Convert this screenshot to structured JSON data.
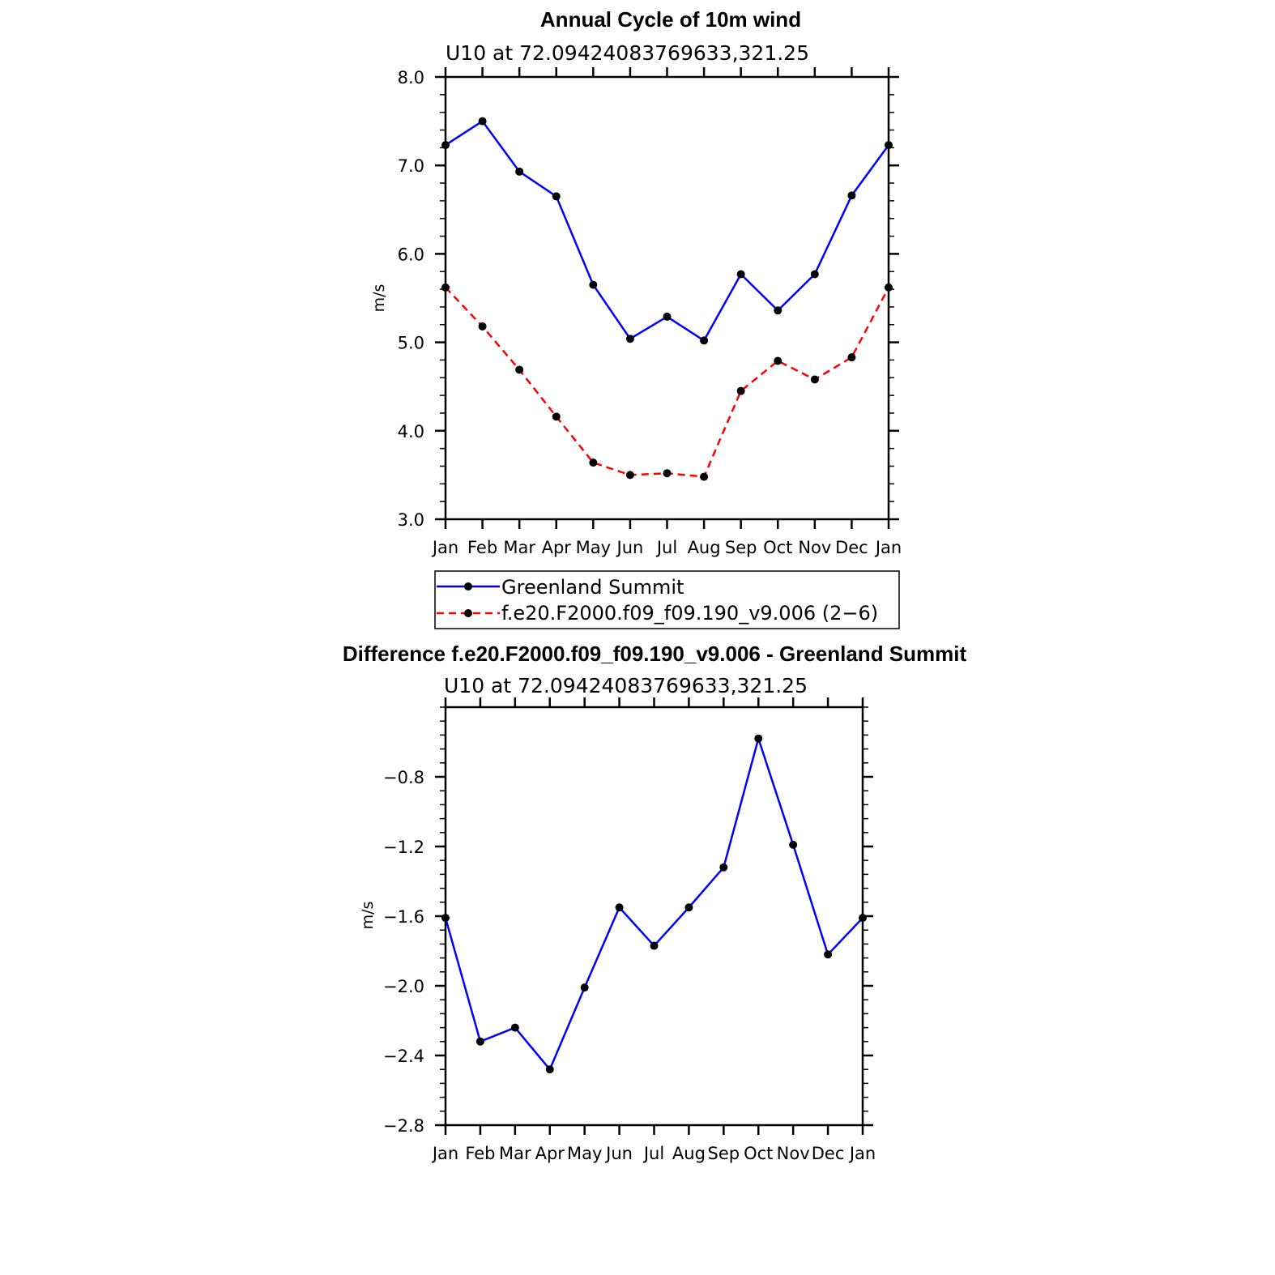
{
  "chart_data": [
    {
      "type": "line",
      "title": "Annual Cycle of 10m wind",
      "subtitle": "U10 at 72.09424083769633,321.25",
      "xlabel": "",
      "ylabel": "m/s",
      "categories": [
        "Jan",
        "Feb",
        "Mar",
        "Apr",
        "May",
        "Jun",
        "Jul",
        "Aug",
        "Sep",
        "Oct",
        "Nov",
        "Dec",
        "Jan"
      ],
      "ylim": [
        3.0,
        8.0
      ],
      "yticks": [
        "3.0",
        "4.0",
        "5.0",
        "6.0",
        "7.0",
        "8.0"
      ],
      "series": [
        {
          "name": "Greenland Summit",
          "color": "#0000ff",
          "dash": "solid",
          "values": [
            7.23,
            7.5,
            6.93,
            6.65,
            5.65,
            5.04,
            5.29,
            5.02,
            5.77,
            5.36,
            5.77,
            6.66,
            7.23
          ]
        },
        {
          "name": "f.e20.F2000.f09_f09.190_v9.006 (2−6)",
          "color": "#ff0000",
          "dash": "dashed",
          "values": [
            5.62,
            5.18,
            4.69,
            4.16,
            3.64,
            3.5,
            3.52,
            3.48,
            4.45,
            4.79,
            4.58,
            4.83,
            5.62
          ]
        }
      ],
      "legend": "below"
    },
    {
      "type": "line",
      "title": "Difference f.e20.F2000.f09_f09.190_v9.006 - Greenland Summit",
      "subtitle": "U10 at 72.09424083769633,321.25",
      "xlabel": "",
      "ylabel": "m/s",
      "categories": [
        "Jan",
        "Feb",
        "Mar",
        "Apr",
        "May",
        "Jun",
        "Jul",
        "Aug",
        "Sep",
        "Oct",
        "Nov",
        "Dec",
        "Jan"
      ],
      "ylim": [
        -2.8,
        -0.4
      ],
      "yticks": [
        "−2.8",
        "−2.4",
        "−2.0",
        "−1.6",
        "−1.2",
        "−0.8"
      ],
      "ytick_values": [
        -2.8,
        -2.4,
        -2.0,
        -1.6,
        -1.2,
        -0.8
      ],
      "series": [
        {
          "name": "Difference",
          "color": "#0000ff",
          "dash": "solid",
          "values": [
            -1.61,
            -2.32,
            -2.24,
            -2.48,
            -2.01,
            -1.55,
            -1.77,
            -1.55,
            -1.32,
            -0.58,
            -1.19,
            -1.82,
            -1.61
          ]
        }
      ]
    }
  ]
}
